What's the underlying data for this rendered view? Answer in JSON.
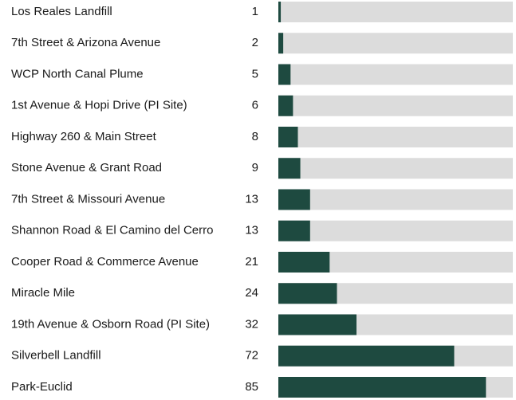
{
  "chart_data": {
    "type": "bar",
    "orientation": "horizontal",
    "categories": [
      "Los Reales Landfill",
      "7th Street & Arizona Avenue",
      "WCP North Canal Plume",
      "1st Avenue & Hopi Drive (PI Site)",
      "Highway 260 & Main Street",
      "Stone Avenue & Grant Road",
      "7th Street & Missouri Avenue",
      "Shannon Road & El Camino del Cerro",
      "Cooper Road & Commerce Avenue",
      "Miracle Mile",
      "19th Avenue & Osborn Road (PI Site)",
      "Silverbell Landfill",
      "Park-Euclid"
    ],
    "values": [
      1,
      2,
      5,
      6,
      8,
      9,
      13,
      13,
      21,
      24,
      32,
      72,
      85
    ],
    "color": "#1e4a40",
    "track_color": "#dcdcdc",
    "xlim": [
      0,
      96
    ]
  }
}
